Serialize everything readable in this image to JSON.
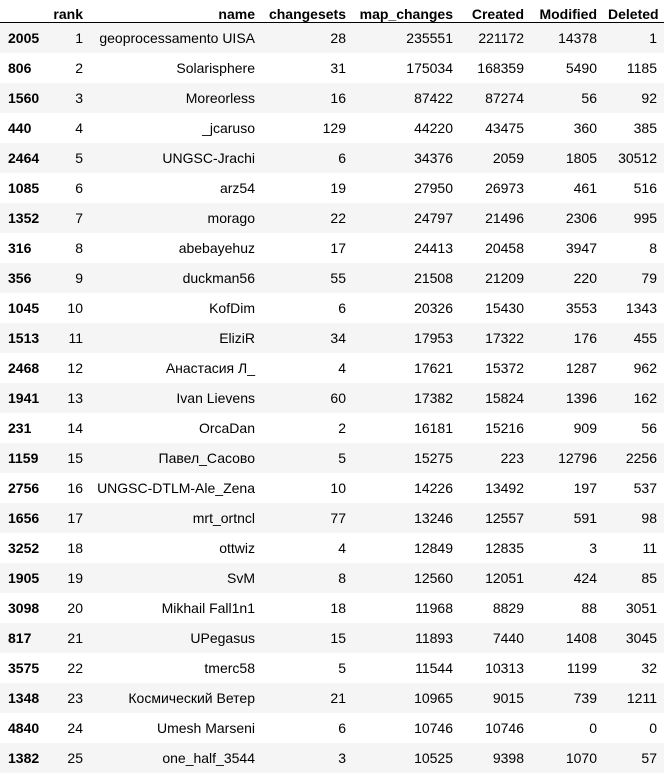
{
  "columns": [
    "",
    "rank",
    "name",
    "changesets",
    "map_changes",
    "Created",
    "Modified",
    "Deleted"
  ],
  "rows": [
    [
      "2005",
      "1",
      "geoprocessamento UISA",
      "28",
      "235551",
      "221172",
      "14378",
      "1"
    ],
    [
      "806",
      "2",
      "Solarisphere",
      "31",
      "175034",
      "168359",
      "5490",
      "1185"
    ],
    [
      "1560",
      "3",
      "Moreorless",
      "16",
      "87422",
      "87274",
      "56",
      "92"
    ],
    [
      "440",
      "4",
      "_jcaruso",
      "129",
      "44220",
      "43475",
      "360",
      "385"
    ],
    [
      "2464",
      "5",
      "UNGSC-Jrachi",
      "6",
      "34376",
      "2059",
      "1805",
      "30512"
    ],
    [
      "1085",
      "6",
      "arz54",
      "19",
      "27950",
      "26973",
      "461",
      "516"
    ],
    [
      "1352",
      "7",
      "morago",
      "22",
      "24797",
      "21496",
      "2306",
      "995"
    ],
    [
      "316",
      "8",
      "abebayehuz",
      "17",
      "24413",
      "20458",
      "3947",
      "8"
    ],
    [
      "356",
      "9",
      "duckman56",
      "55",
      "21508",
      "21209",
      "220",
      "79"
    ],
    [
      "1045",
      "10",
      "KofDim",
      "6",
      "20326",
      "15430",
      "3553",
      "1343"
    ],
    [
      "1513",
      "11",
      "EliziR",
      "34",
      "17953",
      "17322",
      "176",
      "455"
    ],
    [
      "2468",
      "12",
      "Анастасия Л_",
      "4",
      "17621",
      "15372",
      "1287",
      "962"
    ],
    [
      "1941",
      "13",
      "Ivan Lievens",
      "60",
      "17382",
      "15824",
      "1396",
      "162"
    ],
    [
      "231",
      "14",
      "OrcaDan",
      "2",
      "16181",
      "15216",
      "909",
      "56"
    ],
    [
      "1159",
      "15",
      "Павел_Сасово",
      "5",
      "15275",
      "223",
      "12796",
      "2256"
    ],
    [
      "2756",
      "16",
      "UNGSC-DTLM-Ale_Zena",
      "10",
      "14226",
      "13492",
      "197",
      "537"
    ],
    [
      "1656",
      "17",
      "mrt_ortncl",
      "77",
      "13246",
      "12557",
      "591",
      "98"
    ],
    [
      "3252",
      "18",
      "ottwiz",
      "4",
      "12849",
      "12835",
      "3",
      "11"
    ],
    [
      "1905",
      "19",
      "SvM",
      "8",
      "12560",
      "12051",
      "424",
      "85"
    ],
    [
      "3098",
      "20",
      "Mikhail Fall1n1",
      "18",
      "11968",
      "8829",
      "88",
      "3051"
    ],
    [
      "817",
      "21",
      "UPegasus",
      "15",
      "11893",
      "7440",
      "1408",
      "3045"
    ],
    [
      "3575",
      "22",
      "tmerc58",
      "5",
      "11544",
      "10313",
      "1199",
      "32"
    ],
    [
      "1348",
      "23",
      "Космический Ветер",
      "21",
      "10965",
      "9015",
      "739",
      "1211"
    ],
    [
      "4840",
      "24",
      "Umesh Marseni",
      "6",
      "10746",
      "10746",
      "0",
      "0"
    ],
    [
      "1382",
      "25",
      "one_half_3544",
      "3",
      "10525",
      "9398",
      "1070",
      "57"
    ]
  ]
}
